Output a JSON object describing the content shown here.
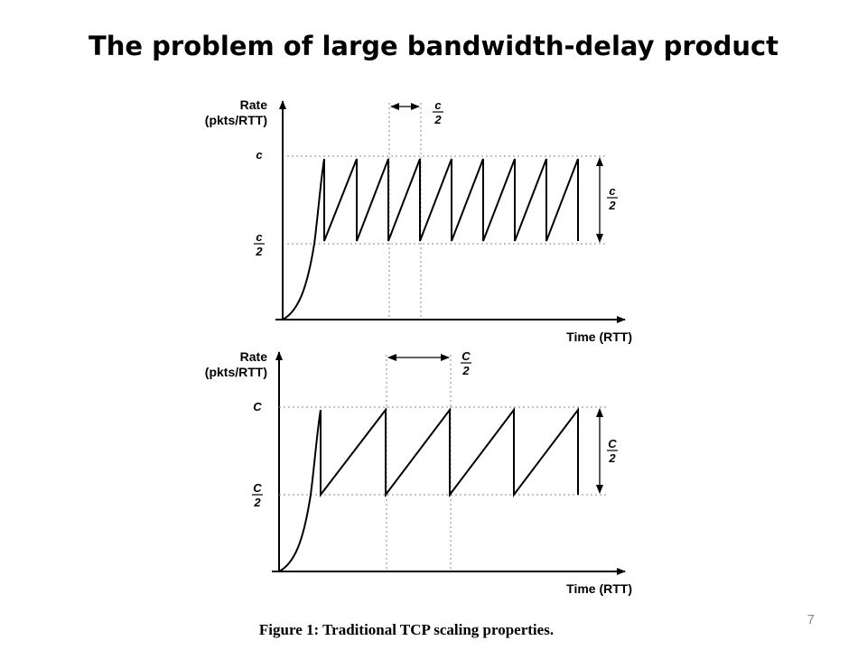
{
  "slide": {
    "title": "The problem of large bandwidth-delay product",
    "caption": "Figure 1: Traditional TCP scaling properties.",
    "page_number": "7"
  },
  "plots": [
    {
      "y_label_line1": "Rate",
      "y_label_line2": "(pkts/RTT)",
      "x_label": "Time (RTT)",
      "max_label": "c",
      "half_num": "c",
      "half_den": "2",
      "span_num": "c",
      "span_den": "2",
      "interval_num": "c",
      "interval_den": "2",
      "sawtooth_teeth": 8
    },
    {
      "y_label_line1": "Rate",
      "y_label_line2": "(pkts/RTT)",
      "x_label": "Time (RTT)",
      "max_label": "C",
      "half_num": "C",
      "half_den": "2",
      "span_num": "C",
      "span_den": "2",
      "interval_num": "C",
      "interval_den": "2",
      "sawtooth_teeth": 4
    }
  ],
  "colors": {
    "line": "#000000",
    "dotted": "#888888",
    "text": "#000000",
    "page_number": "#8a8a8a"
  }
}
